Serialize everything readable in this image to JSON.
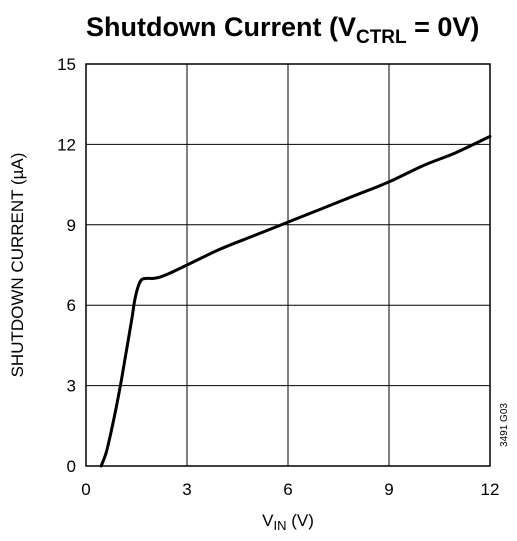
{
  "chart_data": {
    "type": "line",
    "title": {
      "prefix": "Shutdown Current (V",
      "subscript": "CTRL",
      "suffix": " = 0V)"
    },
    "xlabel": {
      "prefix": "V",
      "subscript": "IN",
      "suffix": " (V)"
    },
    "ylabel": "SHUTDOWN CURRENT (µA)",
    "xlim": [
      0,
      12
    ],
    "ylim": [
      0,
      15
    ],
    "x_ticks": [
      "0",
      "3",
      "6",
      "9",
      "12"
    ],
    "y_ticks": [
      "0",
      "3",
      "6",
      "9",
      "12",
      "15"
    ],
    "grid": true,
    "figure_id": "3491 G03",
    "series": [
      {
        "x": [
          0.45,
          0.6,
          0.75,
          0.9,
          1.05,
          1.2,
          1.35,
          1.45,
          1.55,
          1.65,
          1.8,
          2.0,
          2.2,
          2.5,
          3.0,
          4.0,
          5.0,
          6.0,
          7.0,
          8.0,
          9.0,
          10.0,
          11.0,
          12.0
        ],
        "y": [
          0.0,
          0.5,
          1.3,
          2.2,
          3.2,
          4.3,
          5.4,
          6.2,
          6.7,
          6.95,
          7.0,
          7.0,
          7.05,
          7.2,
          7.5,
          8.1,
          8.6,
          9.1,
          9.6,
          10.1,
          10.6,
          11.2,
          11.7,
          12.3
        ]
      }
    ]
  }
}
